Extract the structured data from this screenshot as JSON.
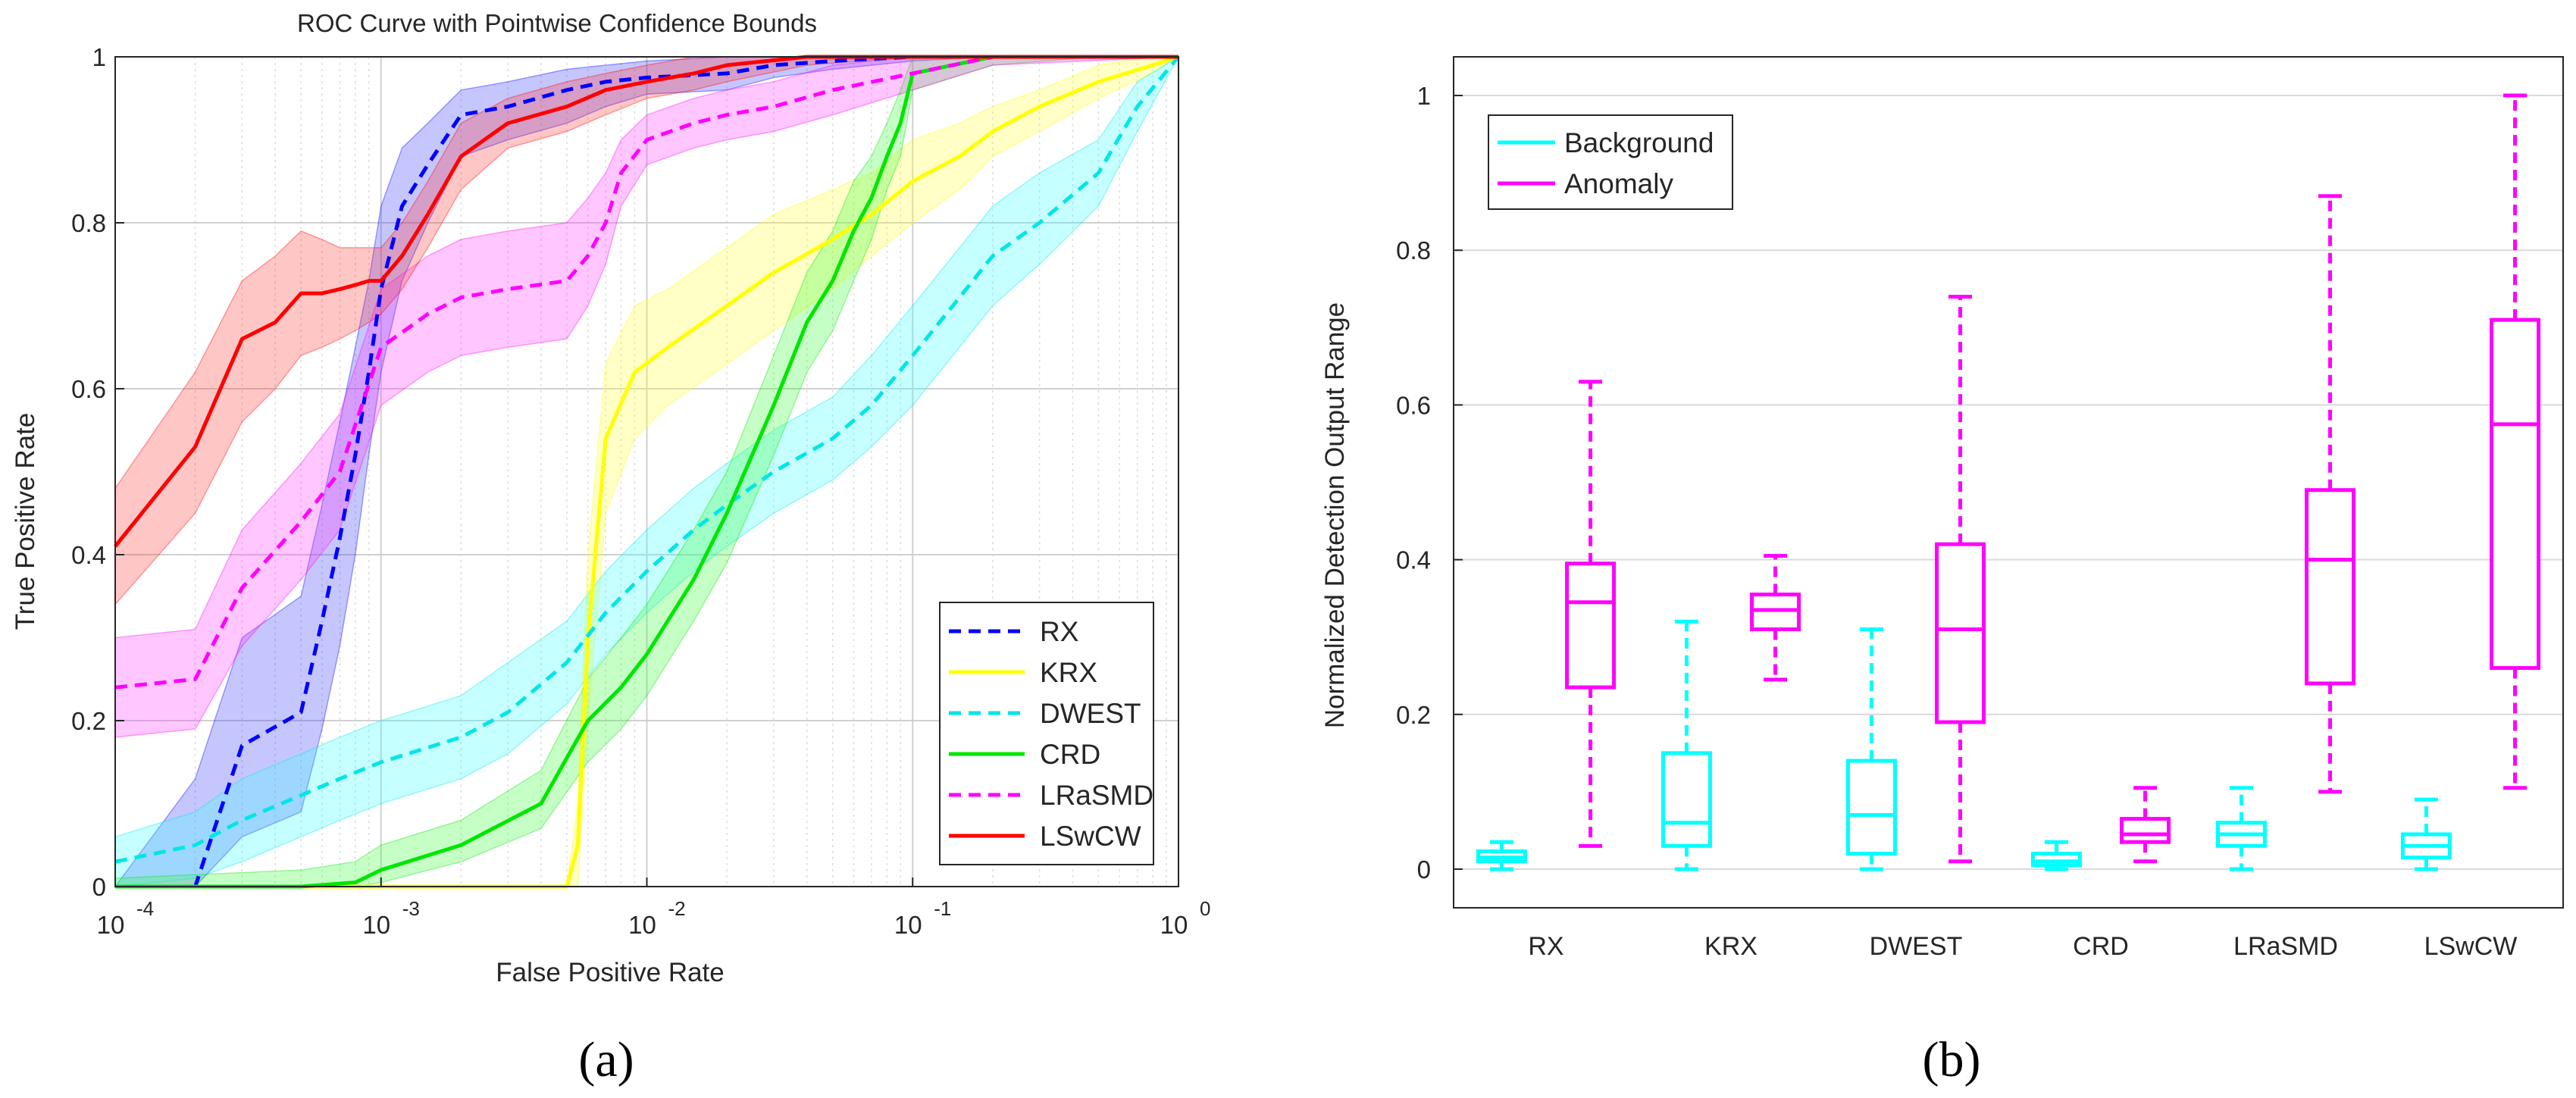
{
  "chart_data": [
    {
      "type": "line",
      "panel_label": "(a)",
      "title": "ROC Curve with Pointwise Confidence Bounds",
      "xlabel": "False Positive Rate",
      "ylabel": "True Positive Rate",
      "xscale": "log",
      "xlim": [
        0.0001,
        1
      ],
      "ylim": [
        0,
        1
      ],
      "grid": true,
      "legend_position": "bottom-right",
      "x_ticks": [
        {
          "value": 0.0001,
          "base": "10",
          "exp": "-4"
        },
        {
          "value": 0.001,
          "base": "10",
          "exp": "-3"
        },
        {
          "value": 0.01,
          "base": "10",
          "exp": "-2"
        },
        {
          "value": 0.1,
          "base": "10",
          "exp": "-1"
        },
        {
          "value": 1,
          "base": "10",
          "exp": "0"
        }
      ],
      "y_ticks": [
        {
          "value": 0,
          "label": "0"
        },
        {
          "value": 0.2,
          "label": "0.2"
        },
        {
          "value": 0.4,
          "label": "0.4"
        },
        {
          "value": 0.6,
          "label": "0.6"
        },
        {
          "value": 0.8,
          "label": "0.8"
        },
        {
          "value": 1,
          "label": "1"
        }
      ],
      "series": [
        {
          "name": "RX",
          "color": "#0000ff",
          "band_color": "#3333ff",
          "dashed": true,
          "x": [
            0.0001,
            0.0002,
            0.0003,
            0.0005,
            0.0006,
            0.0007,
            0.0008,
            0.0009,
            0.001,
            0.0012,
            0.0015,
            0.002,
            0.003,
            0.005,
            0.007,
            0.01,
            0.02,
            0.03,
            0.05,
            0.1,
            0.2,
            1
          ],
          "y": [
            0,
            0,
            0.17,
            0.21,
            0.32,
            0.42,
            0.52,
            0.62,
            0.72,
            0.82,
            0.87,
            0.93,
            0.94,
            0.96,
            0.97,
            0.975,
            0.98,
            0.99,
            0.995,
            1,
            1,
            1
          ],
          "lower": [
            0,
            0,
            0.06,
            0.09,
            0.19,
            0.29,
            0.4,
            0.52,
            0.62,
            0.73,
            0.8,
            0.88,
            0.9,
            0.92,
            0.94,
            0.955,
            0.96,
            0.975,
            0.985,
            0.995,
            1,
            1
          ],
          "upper": [
            0,
            0.13,
            0.3,
            0.35,
            0.46,
            0.56,
            0.65,
            0.73,
            0.82,
            0.89,
            0.92,
            0.96,
            0.97,
            0.985,
            0.99,
            0.995,
            1,
            1,
            1,
            1,
            1,
            1
          ]
        },
        {
          "name": "KRX",
          "color": "#ffff00",
          "band_color": "#ffff33",
          "dashed": false,
          "x": [
            0.0001,
            0.005,
            0.0055,
            0.006,
            0.007,
            0.009,
            0.012,
            0.02,
            0.03,
            0.05,
            0.07,
            0.1,
            0.15,
            0.2,
            0.3,
            0.5,
            0.8,
            1
          ],
          "y": [
            0,
            0,
            0.05,
            0.3,
            0.54,
            0.62,
            0.65,
            0.7,
            0.74,
            0.78,
            0.81,
            0.85,
            0.88,
            0.91,
            0.94,
            0.97,
            0.99,
            1
          ],
          "lower": [
            0,
            0,
            0.0,
            0.2,
            0.45,
            0.54,
            0.58,
            0.63,
            0.67,
            0.72,
            0.76,
            0.8,
            0.84,
            0.88,
            0.91,
            0.95,
            0.98,
            1
          ],
          "upper": [
            0,
            0,
            0.1,
            0.4,
            0.63,
            0.7,
            0.72,
            0.77,
            0.81,
            0.84,
            0.86,
            0.9,
            0.92,
            0.94,
            0.96,
            0.99,
            1,
            1
          ]
        },
        {
          "name": "DWEST",
          "color": "#00e6e6",
          "band_color": "#33ffff",
          "dashed": true,
          "x": [
            0.0001,
            0.0002,
            0.0003,
            0.0005,
            0.0007,
            0.001,
            0.002,
            0.003,
            0.005,
            0.007,
            0.01,
            0.015,
            0.02,
            0.03,
            0.05,
            0.07,
            0.1,
            0.15,
            0.2,
            0.3,
            0.5,
            0.7,
            1
          ],
          "y": [
            0.03,
            0.05,
            0.08,
            0.11,
            0.13,
            0.15,
            0.18,
            0.21,
            0.27,
            0.33,
            0.38,
            0.43,
            0.46,
            0.5,
            0.54,
            0.58,
            0.64,
            0.71,
            0.76,
            0.8,
            0.86,
            0.94,
            1
          ],
          "lower": [
            0,
            0.01,
            0.03,
            0.06,
            0.08,
            0.1,
            0.13,
            0.16,
            0.22,
            0.28,
            0.33,
            0.38,
            0.41,
            0.45,
            0.49,
            0.53,
            0.58,
            0.65,
            0.7,
            0.75,
            0.82,
            0.91,
            1
          ],
          "upper": [
            0.06,
            0.09,
            0.13,
            0.16,
            0.18,
            0.2,
            0.23,
            0.27,
            0.32,
            0.38,
            0.43,
            0.48,
            0.51,
            0.55,
            0.59,
            0.64,
            0.7,
            0.77,
            0.82,
            0.86,
            0.9,
            0.97,
            1
          ]
        },
        {
          "name": "CRD",
          "color": "#00e600",
          "band_color": "#33ff33",
          "dashed": false,
          "x": [
            0.0001,
            0.0005,
            0.0008,
            0.001,
            0.002,
            0.004,
            0.006,
            0.008,
            0.01,
            0.015,
            0.02,
            0.03,
            0.04,
            0.05,
            0.06,
            0.07,
            0.08,
            0.09,
            0.1,
            0.2,
            0.5,
            1
          ],
          "y": [
            0,
            0,
            0.005,
            0.02,
            0.05,
            0.1,
            0.2,
            0.24,
            0.28,
            0.37,
            0.45,
            0.58,
            0.68,
            0.73,
            0.79,
            0.83,
            0.88,
            0.92,
            0.98,
            1,
            1,
            1
          ],
          "lower": [
            0,
            0,
            0,
            0.005,
            0.03,
            0.07,
            0.15,
            0.19,
            0.23,
            0.32,
            0.39,
            0.52,
            0.62,
            0.67,
            0.73,
            0.78,
            0.84,
            0.88,
            0.96,
            0.99,
            1,
            1
          ],
          "upper": [
            0.01,
            0.02,
            0.03,
            0.05,
            0.08,
            0.14,
            0.25,
            0.3,
            0.34,
            0.43,
            0.5,
            0.64,
            0.74,
            0.79,
            0.85,
            0.88,
            0.92,
            0.96,
            1,
            1,
            1,
            1
          ]
        },
        {
          "name": "LRaSMD",
          "color": "#ff00ff",
          "band_color": "#ff33ff",
          "dashed": true,
          "x": [
            0.0001,
            0.0002,
            0.0003,
            0.0005,
            0.0007,
            0.001,
            0.0015,
            0.002,
            0.003,
            0.005,
            0.006,
            0.007,
            0.008,
            0.01,
            0.015,
            0.02,
            0.03,
            0.05,
            0.1,
            0.2,
            1
          ],
          "y": [
            0.24,
            0.25,
            0.36,
            0.44,
            0.5,
            0.65,
            0.69,
            0.71,
            0.72,
            0.73,
            0.76,
            0.8,
            0.86,
            0.9,
            0.92,
            0.93,
            0.94,
            0.96,
            0.98,
            1,
            1
          ],
          "lower": [
            0.18,
            0.19,
            0.29,
            0.37,
            0.43,
            0.58,
            0.62,
            0.64,
            0.65,
            0.66,
            0.7,
            0.75,
            0.82,
            0.87,
            0.89,
            0.9,
            0.91,
            0.93,
            0.96,
            0.99,
            1
          ],
          "upper": [
            0.3,
            0.31,
            0.43,
            0.51,
            0.57,
            0.72,
            0.76,
            0.78,
            0.79,
            0.8,
            0.83,
            0.86,
            0.9,
            0.93,
            0.95,
            0.96,
            0.97,
            0.99,
            1,
            1,
            1
          ]
        },
        {
          "name": "LSwCW",
          "color": "#ff0000",
          "band_color": "#ff3333",
          "dashed": false,
          "x": [
            0.0001,
            0.0002,
            0.0003,
            0.0004,
            0.0005,
            0.0006,
            0.0007,
            0.0008,
            0.0009,
            0.001,
            0.0012,
            0.0015,
            0.002,
            0.003,
            0.005,
            0.007,
            0.01,
            0.015,
            0.02,
            0.04,
            0.1,
            1
          ],
          "y": [
            0.41,
            0.53,
            0.66,
            0.68,
            0.715,
            0.715,
            0.72,
            0.725,
            0.73,
            0.73,
            0.76,
            0.81,
            0.88,
            0.92,
            0.94,
            0.96,
            0.97,
            0.98,
            0.99,
            1,
            1,
            1
          ],
          "lower": [
            0.34,
            0.45,
            0.56,
            0.6,
            0.64,
            0.65,
            0.66,
            0.67,
            0.68,
            0.69,
            0.72,
            0.77,
            0.84,
            0.89,
            0.91,
            0.93,
            0.95,
            0.96,
            0.97,
            0.99,
            1,
            1
          ],
          "upper": [
            0.48,
            0.62,
            0.73,
            0.76,
            0.79,
            0.78,
            0.77,
            0.77,
            0.77,
            0.77,
            0.8,
            0.85,
            0.92,
            0.95,
            0.97,
            0.98,
            0.99,
            1,
            1,
            1,
            1,
            1
          ]
        }
      ]
    },
    {
      "type": "box",
      "panel_label": "(b)",
      "title": "",
      "xlabel": "",
      "ylabel": "Normalized Detection Output Range",
      "ylim": [
        -0.05,
        1.05
      ],
      "grid": true,
      "legend_position": "top-left",
      "y_ticks": [
        {
          "value": 0,
          "label": "0"
        },
        {
          "value": 0.2,
          "label": "0.2"
        },
        {
          "value": 0.4,
          "label": "0.4"
        },
        {
          "value": 0.6,
          "label": "0.6"
        },
        {
          "value": 0.8,
          "label": "0.8"
        },
        {
          "value": 1,
          "label": "1"
        }
      ],
      "categories": [
        "RX",
        "KRX",
        "DWEST",
        "CRD",
        "LRaSMD",
        "LSwCW"
      ],
      "series": [
        {
          "name": "Background",
          "color": "#00ffff",
          "boxes": [
            {
              "min": 0.0,
              "q1": 0.01,
              "median": 0.015,
              "q3": 0.023,
              "max": 0.035
            },
            {
              "min": 0.0,
              "q1": 0.03,
              "median": 0.06,
              "q3": 0.15,
              "max": 0.32
            },
            {
              "min": 0.0,
              "q1": 0.02,
              "median": 0.07,
              "q3": 0.14,
              "max": 0.31
            },
            {
              "min": 0.0,
              "q1": 0.005,
              "median": 0.01,
              "q3": 0.02,
              "max": 0.035
            },
            {
              "min": 0.0,
              "q1": 0.03,
              "median": 0.045,
              "q3": 0.06,
              "max": 0.105
            },
            {
              "min": 0.0,
              "q1": 0.015,
              "median": 0.03,
              "q3": 0.045,
              "max": 0.09
            }
          ]
        },
        {
          "name": "Anomaly",
          "color": "#ff00ff",
          "boxes": [
            {
              "min": 0.03,
              "q1": 0.235,
              "median": 0.345,
              "q3": 0.395,
              "max": 0.63
            },
            {
              "min": 0.245,
              "q1": 0.31,
              "median": 0.335,
              "q3": 0.355,
              "max": 0.405
            },
            {
              "min": 0.01,
              "q1": 0.19,
              "median": 0.31,
              "q3": 0.42,
              "max": 0.74
            },
            {
              "min": 0.01,
              "q1": 0.035,
              "median": 0.045,
              "q3": 0.065,
              "max": 0.105
            },
            {
              "min": 0.1,
              "q1": 0.24,
              "median": 0.4,
              "q3": 0.49,
              "max": 0.87
            },
            {
              "min": 0.105,
              "q1": 0.26,
              "median": 0.575,
              "q3": 0.71,
              "max": 1.0
            }
          ]
        }
      ]
    }
  ]
}
